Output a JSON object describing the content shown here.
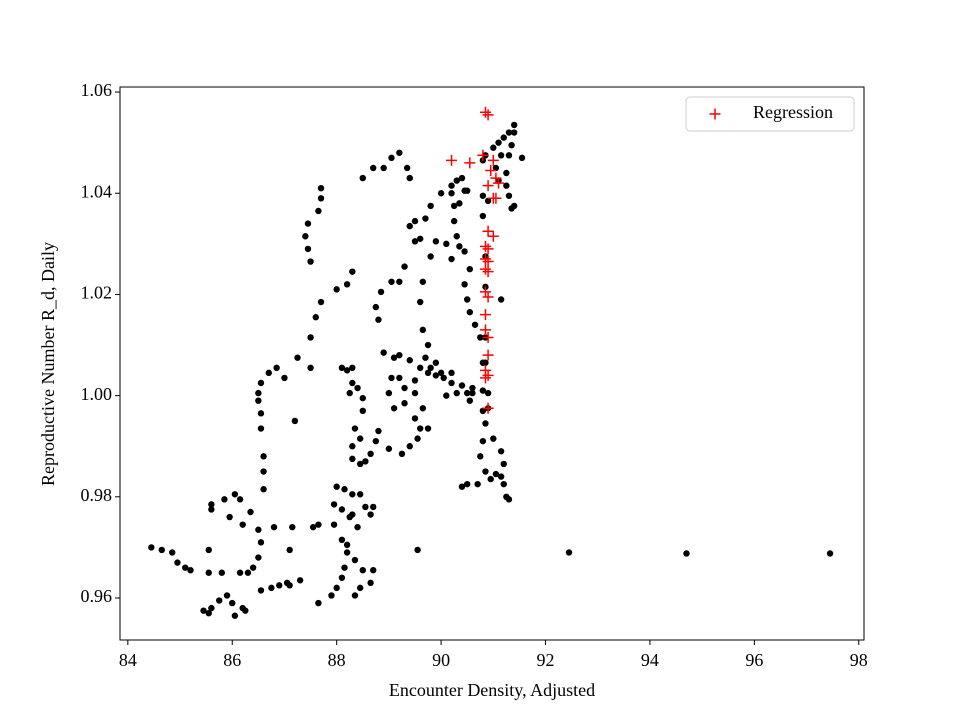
{
  "chart_data": {
    "type": "scatter",
    "xlabel": "Encounter Density, Adjusted",
    "ylabel": "Reproductive Number R_d, Daily",
    "xlim": [
      83.85,
      98.1
    ],
    "ylim": [
      0.9517,
      1.061
    ],
    "xticks": [
      84,
      86,
      88,
      90,
      92,
      94,
      96,
      98
    ],
    "yticks": [
      0.96,
      0.98,
      {
        "value": 1,
        "label": "1.00"
      },
      1.02,
      1.04,
      1.06
    ],
    "legend": "upper right",
    "series": [
      {
        "color": "#000000",
        "marker": "o",
        "x": [
          84.45,
          84.65,
          84.85,
          84.95,
          85.1,
          85.2,
          85.45,
          85.55,
          85.6,
          85.75,
          85.9,
          86.0,
          86.05,
          86.25,
          86.2,
          85.55,
          85.8,
          85.6,
          85.6,
          85.55,
          85.85,
          85.95,
          86.05,
          86.15,
          86.2,
          86.35,
          86.5,
          86.55,
          86.5,
          86.4,
          86.3,
          86.15,
          86.55,
          86.75,
          86.9,
          87.05,
          87.1,
          87.15,
          86.8,
          86.6,
          86.6,
          86.6,
          86.55,
          86.55,
          86.5,
          86.5,
          86.55,
          86.7,
          86.85,
          87.0,
          87.2,
          87.25,
          87.5,
          87.6,
          87.7,
          87.5,
          87.5,
          87.45,
          87.4,
          87.45,
          87.65,
          87.7,
          87.7,
          87.65,
          87.55,
          87.65,
          87.9,
          88.0,
          88.1,
          88.15,
          88.2,
          88.1,
          87.95,
          87.95,
          88.0,
          88.15,
          88.3,
          88.3,
          88.4,
          88.2,
          88.35,
          88.5,
          88.45,
          88.35,
          88.65,
          88.7,
          88.45,
          88.55,
          88.65,
          88.7,
          88.45,
          88.55,
          88.65,
          88.75,
          88.3,
          88.3,
          88.35,
          88.45,
          88.1,
          88.2,
          88.3,
          88.25,
          88.5,
          88.8,
          89.0,
          89.25,
          89.4,
          89.55,
          89.75,
          89.65,
          89.5,
          89.3,
          89.1,
          89.0,
          89.05,
          89.1,
          89.2,
          89.4,
          89.6,
          89.75,
          89.9,
          90.05,
          90.2,
          90.4,
          90.6,
          90.8,
          90.9,
          89.2,
          89.3,
          89.5,
          89.7,
          89.8,
          90.0,
          90.2,
          88.9,
          88.8,
          88.75,
          88.85,
          89.05,
          89.2,
          89.3,
          89.5,
          89.6,
          89.7,
          89.8,
          90.0,
          90.2,
          90.3,
          90.4,
          90.45,
          90.35,
          90.25,
          90.3,
          90.2,
          90.1,
          89.9,
          89.8,
          89.65,
          89.6,
          89.65,
          89.75,
          89.9,
          89.4,
          89.5,
          88.3,
          88.4,
          88.5,
          88.9,
          89.05,
          89.2,
          89.35,
          89.4,
          88.5,
          88.7,
          88.2,
          88.3,
          88.0,
          90.25,
          90.35,
          90.45,
          90.55,
          90.45,
          90.5,
          90.55,
          90.65,
          90.75,
          90.8,
          90.6,
          90.55,
          90.8,
          90.8,
          90.75,
          90.85,
          90.7,
          90.5,
          90.4,
          90.95,
          91.05,
          91.15,
          91.2,
          91.25,
          91.3,
          91.2,
          91.15,
          91.0,
          90.85,
          90.9,
          90.85,
          90.85,
          90.85,
          90.85,
          90.8,
          90.8,
          90.8,
          90.85,
          91.0,
          91.1,
          91.2,
          91.3,
          91.4,
          91.4,
          91.35,
          91.3,
          91.25,
          91.25,
          91.3,
          91.35,
          91.4,
          91.55,
          91.15,
          91.05,
          91.1,
          91.15,
          90.9,
          90.2,
          90.5,
          89.55,
          92.45,
          94.7,
          97.45,
          90.1,
          90.3,
          90.5,
          89.6,
          89.5,
          87.1,
          87.3,
          88.1,
          88.25
        ],
        "values": [
          0.97,
          0.9695,
          0.969,
          0.967,
          0.966,
          0.9655,
          0.9575,
          0.957,
          0.958,
          0.9595,
          0.9605,
          0.959,
          0.9565,
          0.9575,
          0.958,
          0.965,
          0.965,
          0.9775,
          0.9785,
          0.9695,
          0.9795,
          0.976,
          0.9805,
          0.9795,
          0.9745,
          0.977,
          0.9735,
          0.971,
          0.968,
          0.966,
          0.965,
          0.965,
          0.9615,
          0.962,
          0.9625,
          0.963,
          0.9695,
          0.974,
          0.974,
          0.9815,
          0.985,
          0.988,
          0.9935,
          0.9965,
          0.999,
          1.0005,
          1.0025,
          1.0045,
          1.0055,
          1.0035,
          0.995,
          1.0075,
          1.0115,
          1.0155,
          1.0185,
          1.0055,
          1.0265,
          1.029,
          1.0315,
          1.034,
          1.0365,
          1.039,
          1.041,
          0.9745,
          0.974,
          0.959,
          0.9605,
          0.962,
          0.964,
          0.966,
          0.969,
          0.9715,
          0.9745,
          0.9785,
          0.982,
          0.9815,
          0.9805,
          0.9765,
          0.974,
          0.9705,
          0.9675,
          0.9655,
          0.962,
          0.9605,
          0.963,
          0.9655,
          0.9805,
          0.978,
          0.9765,
          0.978,
          0.9865,
          0.987,
          0.9885,
          0.991,
          0.99,
          0.9875,
          0.9935,
          0.9915,
          1.0055,
          1.005,
          1.0025,
          1.0005,
          0.997,
          0.993,
          0.9895,
          0.9885,
          0.99,
          0.9915,
          0.9935,
          0.9975,
          1.0005,
          0.9985,
          0.9975,
          1.0005,
          1.0035,
          1.0075,
          1.008,
          1.007,
          1.0055,
          1.0045,
          1.004,
          1.0035,
          1.0025,
          1.002,
          1.0015,
          1.001,
          1.0005,
          1.0035,
          1.0015,
          1.003,
          1.0075,
          1.0055,
          1.0045,
          1.0045,
          1.0085,
          1.015,
          1.0175,
          1.0205,
          1.0225,
          1.0225,
          1.0255,
          1.0305,
          1.031,
          1.035,
          1.0375,
          1.04,
          1.0415,
          1.0425,
          1.043,
          1.0405,
          1.038,
          1.0345,
          1.0315,
          1.027,
          1.03,
          1.0305,
          1.0275,
          1.0225,
          1.0185,
          1.013,
          1.01,
          1.0065,
          1.0335,
          1.0345,
          1.0055,
          1.0015,
          0.9995,
          1.045,
          1.047,
          1.048,
          1.045,
          1.043,
          1.043,
          1.045,
          1.022,
          1.0245,
          1.021,
          1.0375,
          1.0295,
          1.0285,
          1.025,
          1.022,
          1.019,
          1.0165,
          1.014,
          1.0115,
          1.0065,
          1.0005,
          0.999,
          0.997,
          0.991,
          0.988,
          0.985,
          0.9825,
          0.9825,
          0.982,
          0.9835,
          0.9845,
          0.984,
          0.9825,
          0.98,
          0.9795,
          0.9865,
          0.989,
          0.9915,
          0.9945,
          0.9975,
          1.0065,
          1.0115,
          1.0215,
          1.0275,
          1.0355,
          1.0395,
          1.0465,
          1.0475,
          1.049,
          1.05,
          1.051,
          1.052,
          1.0535,
          1.052,
          1.0495,
          1.0475,
          1.044,
          1.0415,
          1.0395,
          1.037,
          1.0375,
          1.047,
          1.0475,
          1.045,
          1.0425,
          1.019,
          1.0385,
          1.04,
          1.0405,
          0.9695,
          0.969,
          0.9688,
          0.9688,
          1.0,
          1.0005,
          1.0005,
          0.9935,
          0.9955,
          0.9625,
          0.9635,
          0.9775,
          0.976
        ]
      },
      {
        "name": "Regression",
        "color": "#ff0000",
        "marker": "+",
        "x": [
          90.85,
          90.9,
          90.2,
          90.55,
          90.8,
          91.0,
          90.95,
          91.05,
          91.1,
          90.9,
          91.05,
          91.0,
          90.9,
          91.0,
          90.85,
          90.9,
          90.85,
          90.9,
          90.85,
          90.9,
          90.85,
          90.9,
          90.85,
          90.85,
          90.9,
          90.9,
          90.85,
          90.9,
          90.85,
          90.9
        ],
        "values": [
          1.056,
          1.0555,
          1.0465,
          1.046,
          1.0475,
          1.0465,
          1.0445,
          1.043,
          1.042,
          1.0415,
          1.039,
          1.039,
          1.0325,
          1.0315,
          1.0295,
          1.029,
          1.027,
          1.0265,
          1.025,
          1.0245,
          1.0205,
          1.0195,
          1.016,
          1.013,
          1.0115,
          1.008,
          1.005,
          1.004,
          1.0035,
          0.9975
        ]
      }
    ]
  }
}
